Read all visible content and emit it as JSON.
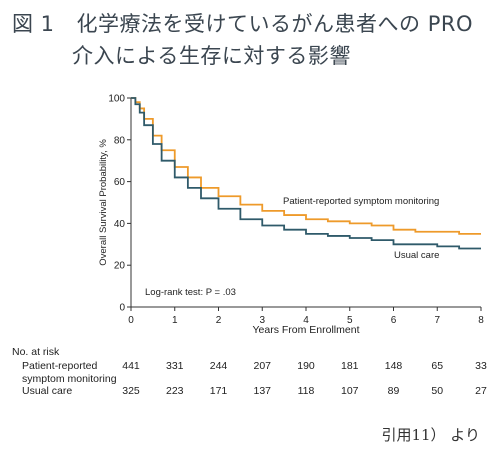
{
  "figure": {
    "number": "図 1",
    "title_line1": "化学療法を受けているがん患者への PRO",
    "title_line2": "介入による生存に対する影響"
  },
  "chart_data": {
    "type": "line",
    "xlabel": "Years From Enrollment",
    "ylabel": "Overall Survival Probability, %",
    "xlim": [
      0,
      8
    ],
    "ylim": [
      0,
      100
    ],
    "xticks": [
      0,
      1,
      2,
      3,
      4,
      5,
      6,
      7,
      8
    ],
    "yticks": [
      0,
      20,
      40,
      60,
      80,
      100
    ],
    "grid": false,
    "annotation": "Log-rank test: P = .03",
    "series": [
      {
        "name": "Patient-reported symptom monitoring",
        "color": "#ee9a2a",
        "x": [
          0,
          0.1,
          0.2,
          0.3,
          0.5,
          0.7,
          1.0,
          1.3,
          1.6,
          2.0,
          2.5,
          3.0,
          3.5,
          4.0,
          4.5,
          5.0,
          5.5,
          6.0,
          6.5,
          7.0,
          7.5,
          8.0
        ],
        "y": [
          100,
          98,
          95,
          90,
          82,
          75,
          67,
          62,
          57,
          53,
          49,
          46,
          44,
          42,
          41,
          40,
          39,
          37,
          36,
          36,
          35,
          35
        ]
      },
      {
        "name": "Usual care",
        "color": "#2f5a6a",
        "x": [
          0,
          0.1,
          0.2,
          0.3,
          0.5,
          0.7,
          1.0,
          1.3,
          1.6,
          2.0,
          2.5,
          3.0,
          3.5,
          4.0,
          4.5,
          5.0,
          5.5,
          6.0,
          6.5,
          7.0,
          7.5,
          8.0
        ],
        "y": [
          100,
          97,
          93,
          87,
          78,
          70,
          62,
          57,
          52,
          47,
          42,
          39,
          37,
          35,
          34,
          33,
          32,
          30,
          30,
          29,
          28,
          28
        ]
      }
    ],
    "at_risk": {
      "header": "No. at risk",
      "groups": [
        {
          "label_line1": "Patient-reported",
          "label_line2": "symptom monitoring",
          "values": [
            441,
            331,
            244,
            207,
            190,
            181,
            148,
            65,
            33
          ]
        },
        {
          "label_line1": "Usual care",
          "values": [
            325,
            223,
            171,
            137,
            118,
            107,
            89,
            50,
            27
          ]
        }
      ]
    }
  },
  "citation": "引用11） より"
}
